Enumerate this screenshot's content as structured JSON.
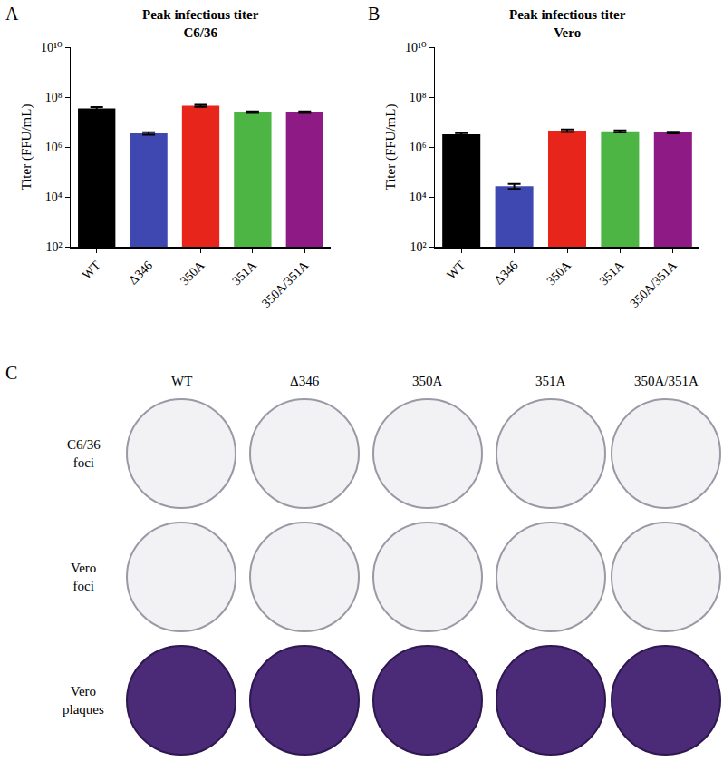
{
  "chart_data": [
    {
      "type": "bar",
      "annotations": [
        "A"
      ],
      "title": "Peak infectious titer\nC6/36",
      "y_label": "Titer (FFU/mL)",
      "categories": [
        "WT",
        "Δ346",
        "350A",
        "351A",
        "350A/351A"
      ],
      "values": [
        35000000,
        3500000,
        45000000,
        25000000,
        25000000
      ],
      "errors": [
        5000000,
        400000,
        4000000,
        2000000,
        2000000
      ],
      "colors": [
        "#000000",
        "#3f48b0",
        "#e8251a",
        "#4cb544",
        "#8e1a86"
      ],
      "log": "y",
      "grid": false,
      "ylim": [
        100,
        10000000000
      ],
      "yticks": [
        {
          "value": 100,
          "label": "10²"
        },
        {
          "value": 10000,
          "label": "10⁴"
        },
        {
          "value": 1000000,
          "label": "10⁶"
        },
        {
          "value": 100000000,
          "label": "10⁸"
        },
        {
          "value": 10000000000,
          "label": "10¹⁰"
        }
      ]
    },
    {
      "type": "bar",
      "annotations": [
        "B"
      ],
      "title": "Peak infectious titer\nVero",
      "y_label": "Titer (FFU/mL)",
      "categories": [
        "WT",
        "Δ346",
        "350A",
        "351A",
        "350A/351A"
      ],
      "values": [
        3200000,
        27000,
        4500000,
        4200000,
        3800000
      ],
      "errors": [
        400000,
        6000,
        500000,
        400000,
        300000
      ],
      "colors": [
        "#000000",
        "#3f48b0",
        "#e8251a",
        "#4cb544",
        "#8e1a86"
      ],
      "log": "y",
      "grid": false,
      "ylim": [
        100,
        10000000000
      ],
      "yticks": [
        {
          "value": 100,
          "label": "10²"
        },
        {
          "value": 10000,
          "label": "10⁴"
        },
        {
          "value": 1000000,
          "label": "10⁶"
        },
        {
          "value": 100000000,
          "label": "10⁸"
        },
        {
          "value": 10000000000,
          "label": "10¹⁰"
        }
      ]
    }
  ],
  "panel_c": {
    "label": "C",
    "columns": [
      "WT",
      "Δ346",
      "350A",
      "351A",
      "350A/351A"
    ],
    "rows": [
      [
        "C6/36",
        "foci"
      ],
      [
        "Vero",
        "foci"
      ],
      [
        "Vero",
        "plaques"
      ]
    ]
  }
}
